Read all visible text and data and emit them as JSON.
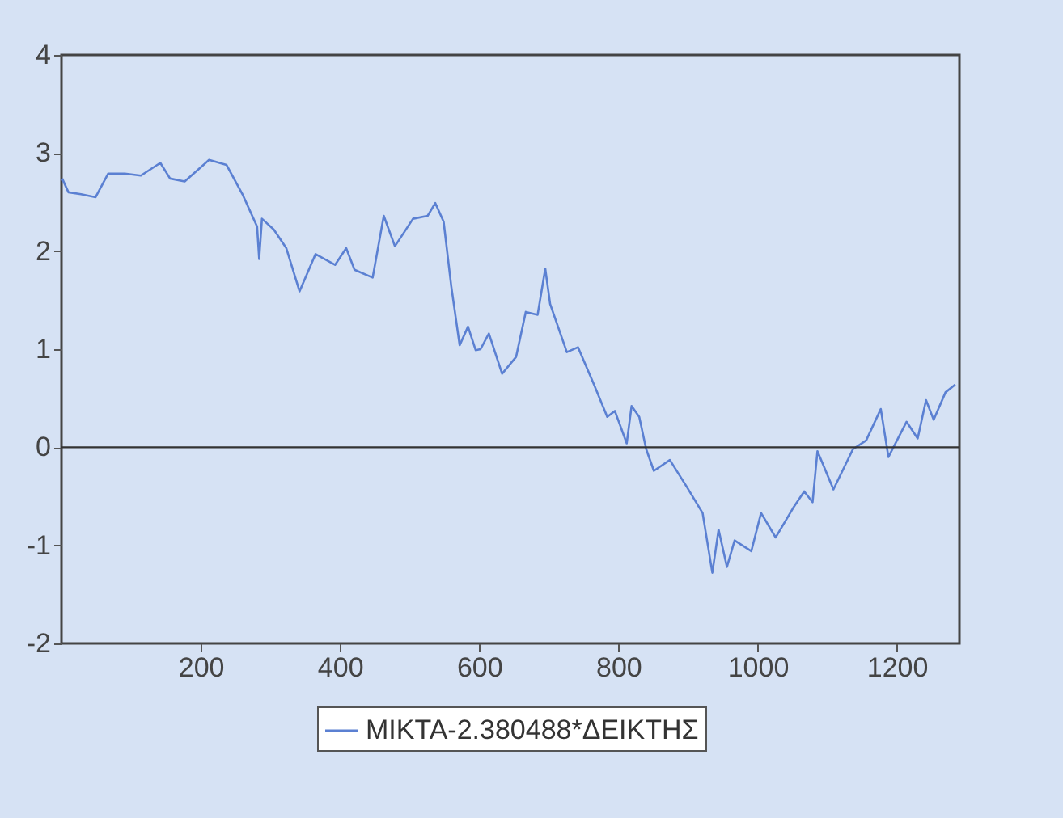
{
  "chart_data": {
    "type": "line",
    "xlim": [
      0,
      1290
    ],
    "xticks": [
      200,
      400,
      600,
      800,
      1000,
      1200
    ],
    "ylim": [
      -2,
      4
    ],
    "yticks": [
      -2,
      -1,
      0,
      1,
      2,
      3,
      4
    ],
    "grid": false,
    "legend": "bottom",
    "ref_lines": [
      {
        "axis": "y",
        "value": 0,
        "color": "#333333"
      }
    ],
    "series": [
      {
        "name": "ΜΙΚΤΑ-2.380488*ΔΕΙΚΤΗΣ",
        "color": "#5b80d2",
        "x": [
          1,
          10,
          28,
          49,
          67,
          91,
          114,
          142,
          156,
          177,
          212,
          237,
          260,
          281,
          284,
          288,
          305,
          323,
          342,
          365,
          393,
          409,
          421,
          447,
          463,
          479,
          505,
          526,
          537,
          549,
          560,
          572,
          584,
          595,
          602,
          614,
          633,
          653,
          667,
          684,
          695,
          702,
          726,
          742,
          765,
          784,
          795,
          812,
          819,
          830,
          840,
          851,
          874,
          898,
          921,
          935,
          944,
          956,
          967,
          991,
          1005,
          1026,
          1051,
          1067,
          1079,
          1086,
          1109,
          1137,
          1156,
          1177,
          1188,
          1214,
          1230,
          1242,
          1253,
          1270,
          1284
        ],
        "values": [
          2.74,
          2.6,
          2.58,
          2.55,
          2.79,
          2.79,
          2.77,
          2.9,
          2.74,
          2.71,
          2.93,
          2.88,
          2.58,
          2.25,
          1.92,
          2.33,
          2.22,
          2.03,
          1.59,
          1.97,
          1.86,
          2.03,
          1.81,
          1.73,
          2.36,
          2.05,
          2.33,
          2.36,
          2.49,
          2.3,
          1.64,
          1.04,
          1.23,
          0.99,
          1.0,
          1.16,
          0.75,
          0.92,
          1.38,
          1.35,
          1.82,
          1.46,
          0.97,
          1.02,
          0.64,
          0.31,
          0.37,
          0.04,
          0.42,
          0.31,
          -0.02,
          -0.24,
          -0.13,
          -0.4,
          -0.67,
          -1.28,
          -0.84,
          -1.22,
          -0.95,
          -1.06,
          -0.67,
          -0.92,
          -0.62,
          -0.45,
          -0.56,
          -0.04,
          -0.43,
          -0.02,
          0.07,
          0.39,
          -0.1,
          0.26,
          0.09,
          0.48,
          0.28,
          0.56,
          0.64
        ]
      }
    ]
  }
}
